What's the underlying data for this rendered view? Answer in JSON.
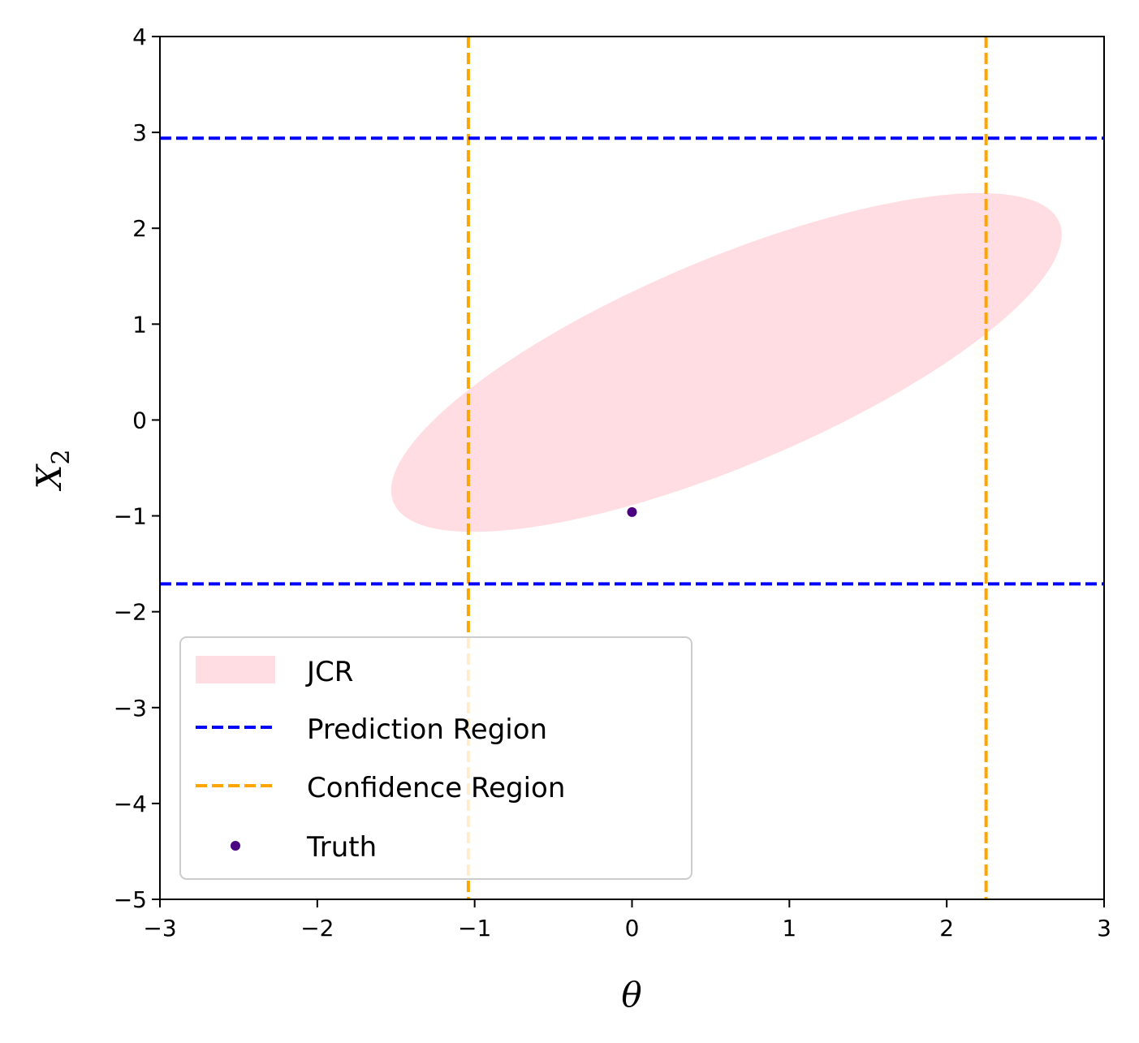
{
  "chart_data": {
    "type": "scatter",
    "xlabel": "θ",
    "ylabel": "X",
    "ylabel_subscript": "2",
    "xlim": [
      -3,
      3
    ],
    "ylim": [
      -5,
      4
    ],
    "x_ticks": [
      -3,
      -2,
      -1,
      0,
      1,
      2,
      3
    ],
    "y_ticks": [
      -5,
      -4,
      -3,
      -2,
      -1,
      0,
      1,
      2,
      3,
      4
    ],
    "x_tick_labels": [
      "−3",
      "−2",
      "−1",
      "0",
      "1",
      "2",
      "3"
    ],
    "y_tick_labels": [
      "−5",
      "−4",
      "−3",
      "−2",
      "−1",
      "0",
      "1",
      "2",
      "3",
      "4"
    ],
    "grid": false,
    "legend_position": "lower-left",
    "series": [
      {
        "name": "JCR",
        "kind": "ellipse-region",
        "color": "#ffdde2",
        "center": [
          0.6,
          0.6
        ],
        "semi_axes": [
          2.6,
          0.95
        ],
        "angle_deg": 38
      },
      {
        "name": "Prediction Region",
        "kind": "hlines",
        "color": "#0000ff",
        "style": "dashed",
        "y": [
          -1.71,
          2.94
        ]
      },
      {
        "name": "Confidence Region",
        "kind": "vlines",
        "color": "#ffa500",
        "style": "dashed",
        "x": [
          -1.04,
          2.25
        ]
      },
      {
        "name": "Truth",
        "kind": "point",
        "color": "#4b0082",
        "x": [
          0.0
        ],
        "y": [
          -0.96
        ]
      }
    ]
  }
}
